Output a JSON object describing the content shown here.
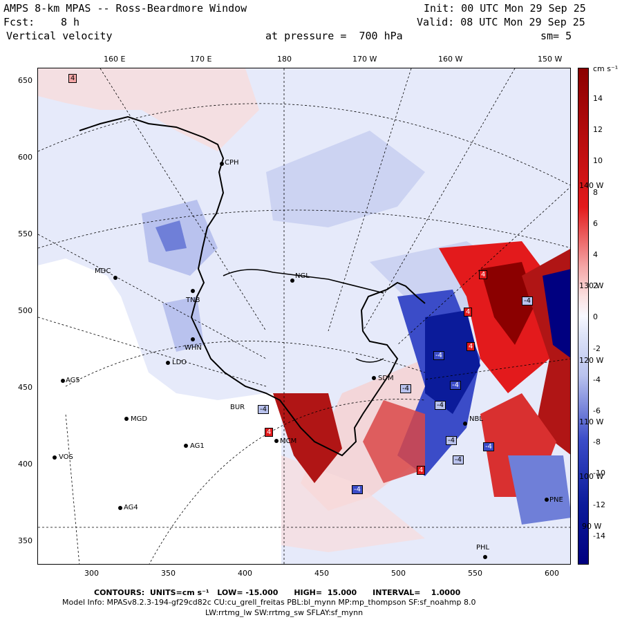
{
  "header": {
    "title": "AMPS 8-km MPAS -- Ross-Beardmore Window",
    "fcst_label": "Fcst:",
    "fcst_value": "8 h",
    "field": "Vertical velocity",
    "init": "Init: 00 UTC Mon 29 Sep 25",
    "valid": "Valid: 08 UTC Mon 29 Sep 25",
    "pressure": "at pressure =  700 hPa",
    "smoothing": "sm= 5"
  },
  "map": {
    "x_ticks": [
      "300",
      "350",
      "400",
      "450",
      "500",
      "550",
      "600"
    ],
    "y_ticks": [
      "650",
      "600",
      "550",
      "500",
      "450",
      "400",
      "350"
    ],
    "lon_labels_top": [
      "160 E",
      "170 E",
      "180",
      "170 W",
      "160 W",
      "150 W"
    ],
    "lon_labels_right": [
      "140 W",
      "130 W",
      "120 W",
      "110 W",
      "100 W",
      "90 W"
    ],
    "stations": [
      {
        "id": "CPH"
      },
      {
        "id": "MDC"
      },
      {
        "id": "NGL"
      },
      {
        "id": "TNB"
      },
      {
        "id": "WHN"
      },
      {
        "id": "LDO"
      },
      {
        "id": "AG5"
      },
      {
        "id": "SDM"
      },
      {
        "id": "BUR"
      },
      {
        "id": "MGD"
      },
      {
        "id": "MCM"
      },
      {
        "id": "AG1"
      },
      {
        "id": "VOS"
      },
      {
        "id": "AG4"
      },
      {
        "id": "NBL"
      },
      {
        "id": "PNE"
      },
      {
        "id": "PHL"
      }
    ],
    "contour_labels": [
      "4",
      "4",
      "4",
      "-4",
      "-4",
      "4",
      "-4",
      "-4",
      "-4",
      "4",
      "-4",
      "-4",
      "-4",
      "-4",
      "4",
      "-4",
      "4"
    ]
  },
  "colorbar": {
    "units": "cm s⁻¹",
    "labels": [
      "14",
      "12",
      "10",
      "8",
      "6",
      "4",
      "2",
      "0",
      "-2",
      "-4",
      "-6",
      "-8",
      "-10",
      "-12",
      "-14"
    ],
    "colors": {
      "red_dark": "#8b0000",
      "red": "#e31a1c",
      "pink": "#f4a6a6",
      "pale_red": "#fbe0e0",
      "white": "#f8f8ff",
      "pale_blue": "#dde3f7",
      "lavender": "#b9c2ee",
      "blue": "#3b4cc8",
      "blue_dark": "#0b1b9a",
      "navy": "#000080"
    }
  },
  "footer": {
    "contours_line": "CONTOURS:  UNITS=cm s⁻¹   LOW= -15.000      HIGH=  15.000      INTERVAL=    1.0000",
    "model_info": "Model Info: MPASv8.2.3-194-gf29cd82c CU:cu_grell_freitas PBL:bl_mynn MP:mp_thompson SF:sf_noahmp 8.0",
    "physics": "LW:rrtmg_lw SW:rrtmg_sw SFLAY:sf_mynn"
  }
}
